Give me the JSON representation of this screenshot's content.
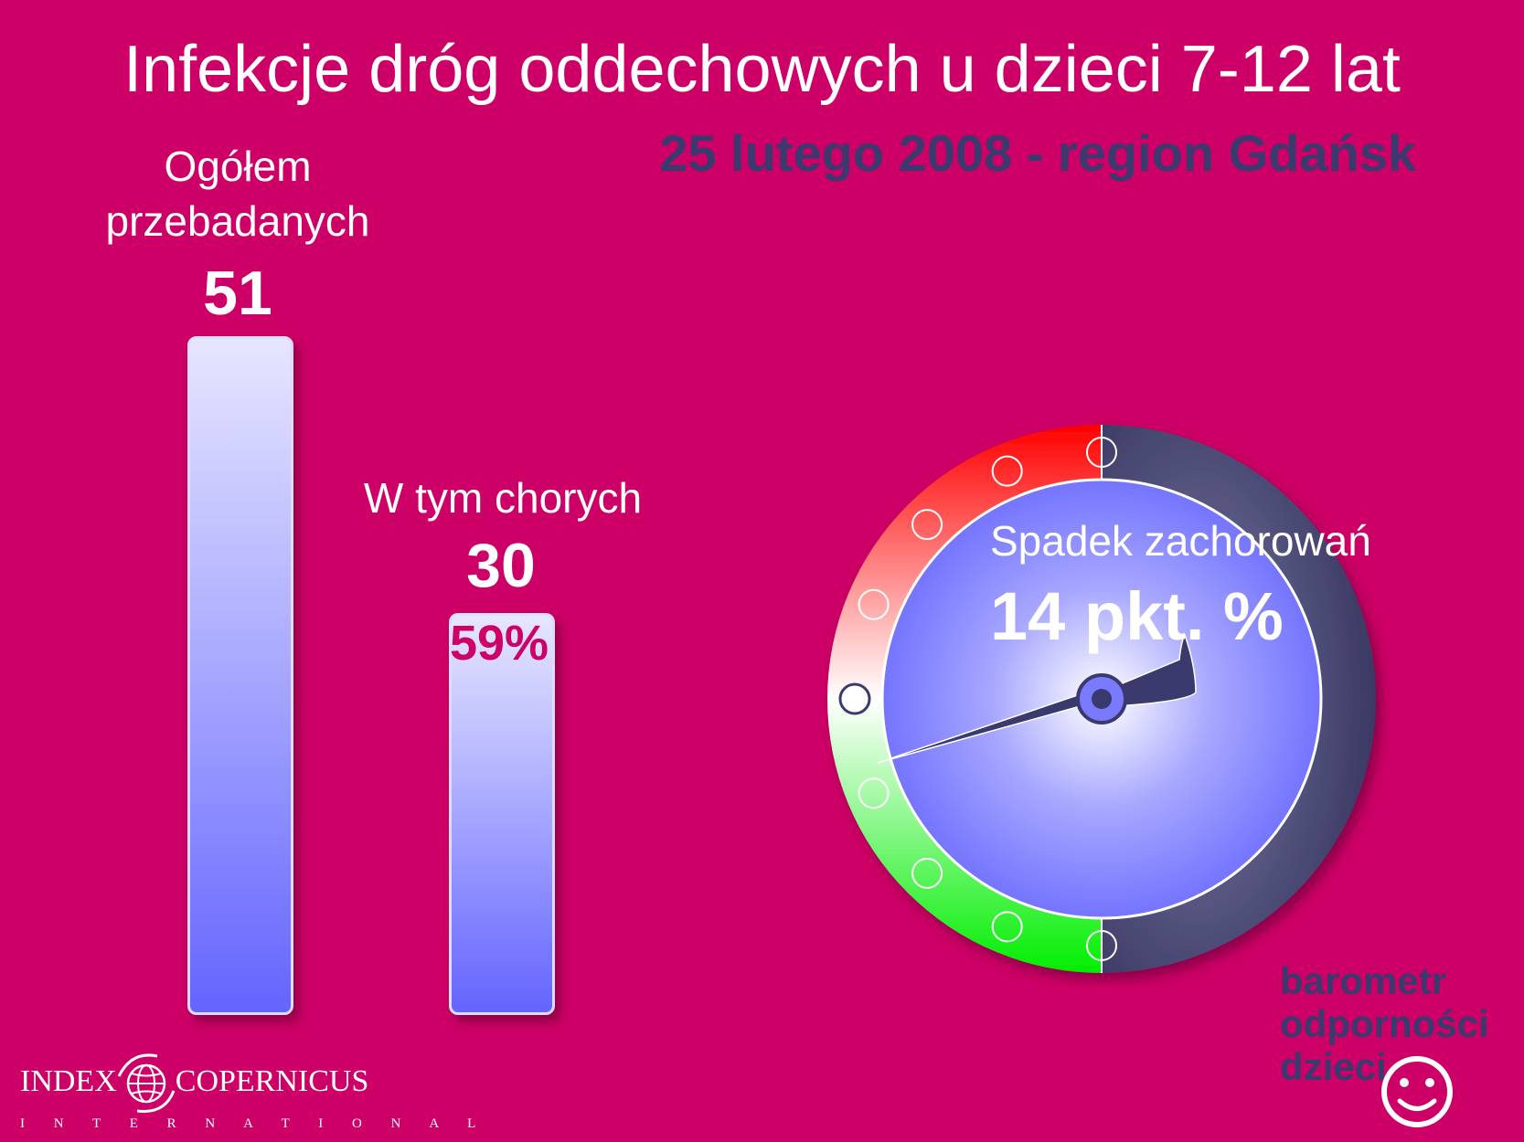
{
  "title": "Infekcje dróg oddechowych u dzieci 7-12 lat",
  "subtitle": "25 lutego 2008 - region Gdańsk",
  "chart_data": {
    "type": "bar",
    "categories": [
      "Ogółem przebadanych",
      "W tym chorych"
    ],
    "values": [
      51,
      30
    ],
    "value_labels": [
      "51",
      "30"
    ],
    "category_lines": [
      [
        "Ogółem",
        "przebadanych"
      ],
      [
        "W tym chorych"
      ]
    ],
    "percent_label": "59%",
    "title": "Infekcje dróg oddechowych u dzieci 7-12 lat"
  },
  "gauge": {
    "label": "Spadek zachorowań",
    "value_text": "14 pkt. %",
    "value": 14,
    "colors": {
      "bad": "#ff0000",
      "good": "#00ee00",
      "dial": "#7070ff",
      "dark": "#3a3a6e"
    }
  },
  "logo": {
    "index": "INDEX",
    "copernicus": "COPERNICUS",
    "international": "I N T E R N A T I O N A L",
    "icon": "globe-icon"
  },
  "brand": {
    "lines": [
      "barometr",
      "odporności",
      "dzieci"
    ],
    "icon": "smiley-icon"
  },
  "colors": {
    "background": "#cc0066",
    "title_text": "#ffffff",
    "subtitle_text": "#3a3a6e"
  }
}
